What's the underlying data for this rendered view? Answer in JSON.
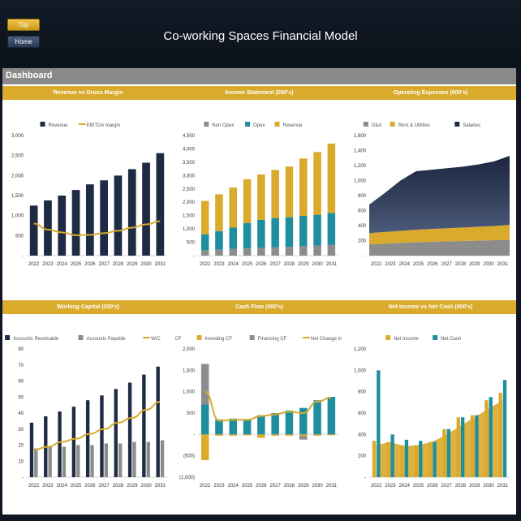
{
  "header": {
    "title": "Co-working Spaces Financial Model",
    "top_button": "Top",
    "home_button": "Home",
    "dashboard_label": "Dashboard"
  },
  "colors": {
    "navy": "#1f2a44",
    "navy_light": "#3d4d6e",
    "teal": "#1f8fa0",
    "gold": "#d9aa2c",
    "grey": "#8c8c8c",
    "stripe": "#d9aa2c"
  },
  "chart_data": [
    {
      "id": "rev",
      "type": "bar",
      "title": "Revenue vs Gross Margin",
      "categories": [
        "2022",
        "2023",
        "2024",
        "2025",
        "2026",
        "2027",
        "2028",
        "2029",
        "2030",
        "2031"
      ],
      "series": [
        {
          "name": "Revenue",
          "type": "bar",
          "color": "#1f2a44",
          "values": [
            1250,
            1380,
            1500,
            1640,
            1780,
            1880,
            2000,
            2160,
            2320,
            2560
          ]
        },
        {
          "name": "EBITDA margin",
          "type": "line",
          "color": "#d9aa2c",
          "values": [
            800,
            650,
            580,
            510,
            520,
            560,
            620,
            700,
            780,
            860
          ]
        }
      ],
      "yticks": [
        "3,000",
        "2,500",
        "2,000",
        "1,500",
        "1,000",
        "500",
        "-"
      ],
      "ylim": [
        0,
        3000
      ],
      "legend": "top"
    },
    {
      "id": "inc",
      "type": "bar",
      "title": "Income Statement (000's)",
      "stacked": true,
      "categories": [
        "2022",
        "2023",
        "2024",
        "2025",
        "2026",
        "2027",
        "2028",
        "2029",
        "2030",
        "2031"
      ],
      "series": [
        {
          "name": "Non Opex",
          "color": "#8c8c8c",
          "values": [
            200,
            220,
            250,
            270,
            290,
            310,
            330,
            360,
            380,
            400
          ]
        },
        {
          "name": "Opex",
          "color": "#1f8fa0",
          "values": [
            600,
            700,
            800,
            950,
            1050,
            1100,
            1110,
            1130,
            1150,
            1200
          ]
        },
        {
          "name": "Revenue",
          "color": "#d9aa2c",
          "values": [
            1250,
            1380,
            1500,
            1640,
            1700,
            1800,
            1900,
            2150,
            2350,
            2600
          ]
        }
      ],
      "yticks": [
        "4,500",
        "4,000",
        "3,500",
        "3,000",
        "2,500",
        "2,000",
        "1,500",
        "1,000",
        "500",
        "-"
      ],
      "ylim": [
        0,
        4500
      ],
      "legend": "top"
    },
    {
      "id": "opx",
      "type": "area",
      "title": "Operating Expenses (000's)",
      "stacked": true,
      "categories": [
        "2022",
        "2023",
        "2024",
        "2025",
        "2026",
        "2027",
        "2028",
        "2029",
        "2030",
        "2031"
      ],
      "series": [
        {
          "name": "G&A",
          "color": "#8c8c8c",
          "values": [
            150,
            160,
            170,
            180,
            185,
            190,
            195,
            200,
            205,
            210
          ]
        },
        {
          "name": "Rent & Utilities",
          "color": "#d9aa2c",
          "values": [
            150,
            155,
            160,
            165,
            170,
            175,
            180,
            185,
            190,
            200
          ]
        },
        {
          "name": "Salaries",
          "color": "#1f2a44",
          "values": [
            380,
            520,
            670,
            780,
            790,
            800,
            810,
            830,
            860,
            920
          ]
        }
      ],
      "yticks": [
        "1,600",
        "1,400",
        "1,200",
        "1,000",
        "800",
        "600",
        "400",
        "200",
        "-"
      ],
      "ylim": [
        0,
        1600
      ],
      "legend": "top"
    },
    {
      "id": "wc",
      "type": "bar",
      "title": "Working Capital (000's)",
      "categories": [
        "2022",
        "2023",
        "2024",
        "2025",
        "2026",
        "2027",
        "2028",
        "2029",
        "2030",
        "2031"
      ],
      "series": [
        {
          "name": "Accounts Receivable",
          "type": "bar",
          "color": "#1f2a44",
          "values": [
            34,
            38,
            41,
            44,
            48,
            51,
            55,
            59,
            64,
            69
          ]
        },
        {
          "name": "Accounts Payable",
          "type": "bar",
          "color": "#8c8c8c",
          "values": [
            18,
            19,
            19,
            20,
            20,
            21,
            21,
            22,
            22,
            23
          ]
        },
        {
          "name": "W/C",
          "type": "line",
          "color": "#d9aa2c",
          "values": [
            17,
            19,
            22,
            24,
            27,
            30,
            34,
            37,
            42,
            47
          ]
        }
      ],
      "yticks": [
        "80",
        "70",
        "60",
        "50",
        "40",
        "30",
        "20",
        "10",
        "-"
      ],
      "ylim": [
        0,
        80
      ],
      "legend": "top"
    },
    {
      "id": "cf",
      "type": "bar",
      "title": "Cash Flow (000's)",
      "stacked": true,
      "categories": [
        "2022",
        "2023",
        "2024",
        "2025",
        "2026",
        "2027",
        "2028",
        "2029",
        "2030",
        "2031"
      ],
      "series": [
        {
          "name": "Operating CF",
          "type": "bar",
          "color": "#1f8fa0",
          "values": [
            700,
            350,
            370,
            360,
            450,
            500,
            560,
            620,
            800,
            880
          ]
        },
        {
          "name": "Investing CF",
          "type": "bar",
          "color": "#d9aa2c",
          "values": [
            -600,
            -30,
            -30,
            -20,
            -80,
            -30,
            -30,
            -40,
            -30,
            -20
          ]
        },
        {
          "name": "Financing CF",
          "type": "bar",
          "color": "#8c8c8c",
          "values": [
            950,
            0,
            0,
            0,
            0,
            0,
            0,
            -80,
            0,
            0
          ]
        },
        {
          "name": "Net Change in Cash",
          "type": "line",
          "color": "#d9aa2c",
          "values": [
            1000,
            320,
            340,
            340,
            430,
            470,
            530,
            500,
            770,
            860
          ]
        }
      ],
      "yticks": [
        "2,000",
        "1,500",
        "1,000",
        "500",
        "-",
        "(500)",
        "(1,000)"
      ],
      "ylim": [
        -1000,
        2000
      ],
      "legend": "top"
    },
    {
      "id": "ni",
      "type": "bar",
      "title": "Net Income vs Net Cash (000's)",
      "categories": [
        "2022",
        "2023",
        "2024",
        "2025",
        "2026",
        "2027",
        "2028",
        "2029",
        "2030",
        "2031"
      ],
      "series": [
        {
          "name": "Net Income",
          "type": "area",
          "color": "#d9aa2c",
          "values": [
            300,
            330,
            290,
            300,
            330,
            400,
            480,
            560,
            640,
            720
          ]
        },
        {
          "name": "Net Income",
          "type": "bar",
          "color": "#d9aa2c",
          "values": [
            340,
            330,
            300,
            300,
            330,
            450,
            560,
            580,
            720,
            790
          ]
        },
        {
          "name": "Net Cash",
          "type": "bar",
          "color": "#1f8fa0",
          "values": [
            1000,
            400,
            350,
            340,
            330,
            450,
            560,
            580,
            750,
            910
          ]
        }
      ],
      "legend_items": [
        {
          "name": "Net Income",
          "color": "#d9aa2c"
        },
        {
          "name": "Net Cash",
          "color": "#1f8fa0"
        }
      ],
      "yticks": [
        "1,200",
        "1,000",
        "800",
        "600",
        "400",
        "200",
        "-"
      ],
      "ylim": [
        0,
        1200
      ],
      "legend": "top"
    }
  ]
}
